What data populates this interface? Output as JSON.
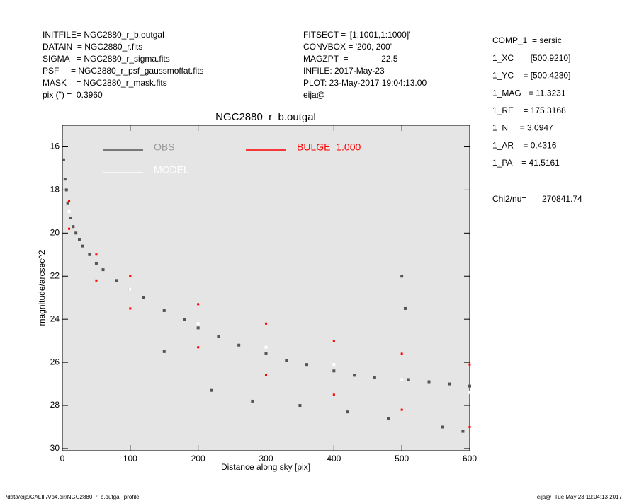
{
  "header": {
    "left": [
      "INITFILE= NGC2880_r_b.outgal",
      "DATAIN  = NGC2880_r.fits",
      "SIGMA   = NGC2880_r_sigma.fits",
      "PSF     = NGC2880_r_psf_gaussmoffat.fits",
      "MASK    = NGC2880_r_mask.fits",
      "pix (\") =  0.3960"
    ],
    "middle": [
      "FITSECT = '[1:1001,1:1000]'",
      "CONVBOX = '200, 200'",
      "MAGZPT  =              22.5",
      "INFILE: 2017-May-23",
      "PLOT: 23-May-2017 19:04:13.00",
      "eija@"
    ],
    "params": [
      "COMP_1  = sersic",
      "1_XC    = [500.9210]",
      "1_YC    = [500.4230]",
      "1_MAG   = 11.3231",
      "1_RE    = 175.3168",
      "1_N     = 3.0947",
      "1_AR    = 0.4316",
      "1_PA    = 41.5161"
    ],
    "chi_label": "Chi2/nu=",
    "chi_value": "270841.74"
  },
  "chart_data": {
    "type": "scatter",
    "title": "NGC2880_r_b.outgal",
    "x_label": "Distance along sky [pix]",
    "y_label": "magnitude/arcsec^2",
    "xlim": [
      0,
      600
    ],
    "ylim": [
      30.1,
      15.0
    ],
    "xticks": [
      0,
      100,
      200,
      300,
      400,
      500,
      600
    ],
    "yticks": [
      16,
      18,
      20,
      22,
      24,
      26,
      28,
      30
    ],
    "series": [
      {
        "name": "OBS",
        "color": "#555555",
        "x": [
          2,
          4,
          6,
          8,
          12,
          16,
          20,
          25,
          30,
          40,
          50,
          60,
          80,
          100,
          120,
          150,
          180,
          200,
          230,
          260,
          300,
          330,
          360,
          400,
          430,
          460,
          500,
          505,
          510,
          540,
          570,
          600,
          220,
          280,
          350,
          420,
          480,
          560,
          590,
          150
        ],
        "values": [
          16.6,
          17.5,
          18.0,
          18.6,
          19.3,
          19.7,
          20.0,
          20.3,
          20.6,
          21.0,
          21.4,
          21.7,
          22.2,
          22.6,
          23.0,
          23.6,
          24.0,
          24.4,
          24.8,
          25.2,
          25.6,
          25.9,
          26.1,
          26.4,
          26.6,
          26.7,
          22.0,
          23.5,
          26.8,
          26.9,
          27.0,
          27.1,
          27.3,
          27.8,
          28.0,
          28.3,
          28.6,
          29.0,
          29.2,
          25.5
        ]
      },
      {
        "name": "MODEL",
        "color": "#ffffff",
        "x": [
          10,
          100,
          200,
          300,
          400,
          500,
          600
        ],
        "values": [
          19,
          22.6,
          24.2,
          25.3,
          26.1,
          26.8,
          27.4
        ]
      },
      {
        "name": "BULGE  1.000",
        "color": "#ff0000",
        "x": [
          10,
          50,
          100,
          200,
          300,
          400,
          500,
          600,
          10,
          50,
          100,
          200,
          300,
          400,
          500,
          600
        ],
        "values": [
          18.5,
          21,
          22,
          23.3,
          24.2,
          25,
          25.6,
          26.1,
          19.8,
          22.2,
          23.5,
          25.3,
          26.6,
          27.5,
          28.2,
          29
        ]
      }
    ]
  },
  "footer": {
    "left": "/data/eija/CALIFA/p4.dir/NGC2880_r_b.outgal_profile",
    "right": "eija@  Tue May 23 19:04:13 2017"
  }
}
